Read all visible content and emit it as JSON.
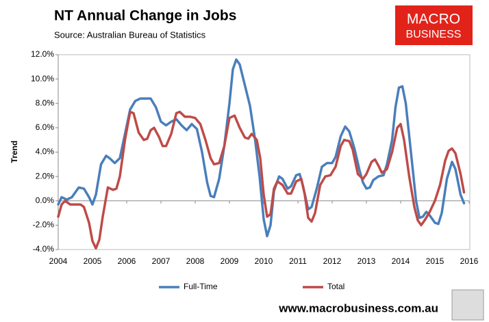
{
  "chart_data": {
    "type": "line",
    "title": "NT Annual Change in Jobs",
    "subtitle": "Source: Australian Bureau of Statistics",
    "y_label": "Trend",
    "logo": [
      "MACRO",
      "BUSINESS"
    ],
    "footer": "www.macrobusiness.com.au",
    "xlim": [
      2004,
      2016
    ],
    "xticks": [
      2004,
      2005,
      2006,
      2007,
      2008,
      2009,
      2010,
      2011,
      2012,
      2013,
      2014,
      2015,
      2016
    ],
    "ylim": [
      -4,
      12
    ],
    "yticks": [
      {
        "value": -4,
        "label": "-4.0%"
      },
      {
        "value": -2,
        "label": "-2.0%"
      },
      {
        "value": 0,
        "label": "0.0%"
      },
      {
        "value": 2,
        "label": "2.0%"
      },
      {
        "value": 4,
        "label": "4.0%"
      },
      {
        "value": 6,
        "label": "6.0%"
      },
      {
        "value": 8,
        "label": "8.0%"
      },
      {
        "value": 10,
        "label": "10.0%"
      },
      {
        "value": 12,
        "label": "12.0%"
      }
    ],
    "grid": false,
    "legend": "bottom",
    "series": [
      {
        "name": "Full-Time",
        "color": "#4a7ebb",
        "x": [
          2004.0,
          2004.1,
          2004.25,
          2004.4,
          2004.6,
          2004.75,
          2004.9,
          2005.0,
          2005.1,
          2005.25,
          2005.4,
          2005.5,
          2005.65,
          2005.8,
          2005.95,
          2006.1,
          2006.25,
          2006.4,
          2006.55,
          2006.7,
          2006.85,
          2007.0,
          2007.15,
          2007.3,
          2007.45,
          2007.6,
          2007.75,
          2007.9,
          2008.05,
          2008.2,
          2008.35,
          2008.45,
          2008.55,
          2008.7,
          2008.85,
          2009.0,
          2009.1,
          2009.2,
          2009.3,
          2009.45,
          2009.6,
          2009.75,
          2009.88,
          2010.0,
          2010.1,
          2010.2,
          2010.3,
          2010.45,
          2010.55,
          2010.7,
          2010.8,
          2010.95,
          2011.05,
          2011.15,
          2011.3,
          2011.4,
          2011.55,
          2011.7,
          2011.85,
          2012.0,
          2012.1,
          2012.25,
          2012.38,
          2012.5,
          2012.65,
          2012.8,
          2012.9,
          2013.0,
          2013.1,
          2013.2,
          2013.35,
          2013.5,
          2013.6,
          2013.75,
          2013.85,
          2013.95,
          2014.05,
          2014.15,
          2014.3,
          2014.45,
          2014.55,
          2014.65,
          2014.75,
          2014.85,
          2015.0,
          2015.1,
          2015.2,
          2015.35,
          2015.5,
          2015.6,
          2015.75,
          2015.85
        ],
        "values": [
          -0.3,
          0.3,
          0.1,
          0.3,
          1.1,
          1.0,
          0.3,
          -0.3,
          0.5,
          3.0,
          3.7,
          3.5,
          3.1,
          3.5,
          5.5,
          7.5,
          8.2,
          8.4,
          8.4,
          8.4,
          7.7,
          6.5,
          6.2,
          6.5,
          6.7,
          6.2,
          5.8,
          6.3,
          5.9,
          4.0,
          1.5,
          0.4,
          0.3,
          1.8,
          4.5,
          8.0,
          10.8,
          11.6,
          11.2,
          9.5,
          7.8,
          5.0,
          2.0,
          -1.5,
          -2.9,
          -2.0,
          0.8,
          2.0,
          1.8,
          1.0,
          1.2,
          2.1,
          2.2,
          1.2,
          -0.7,
          -0.5,
          1.0,
          2.8,
          3.1,
          3.1,
          3.6,
          5.3,
          6.1,
          5.7,
          4.3,
          2.5,
          1.5,
          1.0,
          1.1,
          1.7,
          2.0,
          2.1,
          3.0,
          5.0,
          7.7,
          9.3,
          9.4,
          8.0,
          4.0,
          0.0,
          -1.4,
          -1.3,
          -0.9,
          -1.2,
          -1.8,
          -1.9,
          -1.0,
          1.8,
          3.2,
          2.6,
          0.5,
          -0.2
        ]
      },
      {
        "name": "Total",
        "color": "#be4b48",
        "x": [
          2004.0,
          2004.1,
          2004.2,
          2004.35,
          2004.5,
          2004.65,
          2004.75,
          2004.9,
          2005.0,
          2005.1,
          2005.2,
          2005.3,
          2005.45,
          2005.6,
          2005.7,
          2005.8,
          2005.95,
          2006.1,
          2006.2,
          2006.35,
          2006.5,
          2006.6,
          2006.7,
          2006.8,
          2006.95,
          2007.05,
          2007.15,
          2007.3,
          2007.45,
          2007.55,
          2007.7,
          2007.85,
          2008.0,
          2008.15,
          2008.3,
          2008.45,
          2008.55,
          2008.7,
          2008.85,
          2009.0,
          2009.15,
          2009.3,
          2009.45,
          2009.55,
          2009.65,
          2009.8,
          2009.9,
          2010.0,
          2010.1,
          2010.2,
          2010.3,
          2010.4,
          2010.55,
          2010.7,
          2010.8,
          2010.95,
          2011.1,
          2011.2,
          2011.3,
          2011.4,
          2011.5,
          2011.65,
          2011.8,
          2011.95,
          2012.1,
          2012.25,
          2012.35,
          2012.5,
          2012.6,
          2012.75,
          2012.9,
          2013.0,
          2013.15,
          2013.25,
          2013.35,
          2013.45,
          2013.6,
          2013.75,
          2013.9,
          2014.0,
          2014.1,
          2014.25,
          2014.4,
          2014.5,
          2014.6,
          2014.7,
          2014.85,
          2015.0,
          2015.15,
          2015.3,
          2015.4,
          2015.5,
          2015.6,
          2015.75,
          2015.85
        ],
        "values": [
          -1.3,
          -0.3,
          0.0,
          -0.3,
          -0.3,
          -0.3,
          -0.5,
          -1.8,
          -3.3,
          -3.9,
          -3.2,
          -1.3,
          1.1,
          0.9,
          1.0,
          2.0,
          5.0,
          7.3,
          7.2,
          5.6,
          5.0,
          5.1,
          5.8,
          6.0,
          5.2,
          4.5,
          4.5,
          5.5,
          7.2,
          7.3,
          6.9,
          6.9,
          6.8,
          6.3,
          5.0,
          3.5,
          3.0,
          3.1,
          4.5,
          6.8,
          7.0,
          6.0,
          5.2,
          5.1,
          5.5,
          5.0,
          3.5,
          0.5,
          -1.3,
          -1.1,
          1.0,
          1.6,
          1.3,
          0.6,
          0.6,
          1.6,
          1.8,
          0.5,
          -1.4,
          -1.7,
          -1.0,
          1.3,
          2.0,
          2.1,
          2.8,
          4.5,
          5.0,
          4.9,
          4.2,
          2.2,
          1.8,
          2.2,
          3.2,
          3.4,
          2.9,
          2.3,
          2.6,
          4.0,
          6.0,
          6.3,
          5.0,
          2.0,
          -0.5,
          -1.6,
          -2.0,
          -1.6,
          -0.9,
          0.0,
          1.3,
          3.3,
          4.1,
          4.3,
          3.9,
          2.2,
          0.7
        ]
      }
    ]
  }
}
